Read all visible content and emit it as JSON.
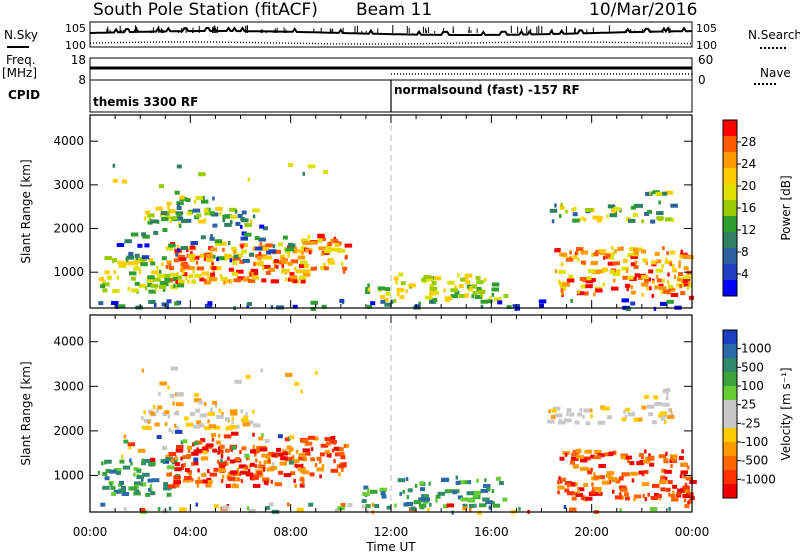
{
  "header": {
    "station": "South Pole Station (fitACF)",
    "beam": "Beam 11",
    "date": "10/Mar/2016"
  },
  "side_labels": {
    "nsky": "N.Sky",
    "nsearch": "N.Search",
    "freq": "Freq.",
    "freq_unit": "[MHz]",
    "nave": "Nave",
    "cpid": "CPID"
  },
  "noise_axis": {
    "left_ticks": [
      "10^5",
      "10^0"
    ],
    "right_ticks": [
      "10^5",
      "10^0"
    ]
  },
  "freq_axis": {
    "left_ticks": [
      "18",
      "8"
    ],
    "right_ticks": [
      "60",
      "0"
    ]
  },
  "cpid": {
    "segments": [
      {
        "label": "themis 3300 RF"
      },
      {
        "label": "normalsound (fast) -157 RF"
      }
    ]
  },
  "colors": {
    "grid_dash": "#bbbbbb",
    "axis": "#000000"
  },
  "chart_data": [
    {
      "type": "heatmap",
      "name": "power",
      "ylabel": "Slant Range [km]",
      "yticks": [
        1000,
        2000,
        3000,
        4000
      ],
      "ylim": [
        180,
        4600
      ],
      "xlim_hours": [
        0,
        24
      ],
      "colorbar": {
        "label": "Power [dB]",
        "ticks": [
          "28",
          "24",
          "20",
          "16",
          "12",
          "8",
          "4"
        ],
        "colors": [
          "#ff0000",
          "#ff5a00",
          "#ff9900",
          "#ffcc00",
          "#e0e000",
          "#99cc00",
          "#2e9e2e",
          "#2f8060",
          "#2b5fa0",
          "#1f3fc0",
          "#0000ff"
        ]
      }
    },
    {
      "type": "heatmap",
      "name": "velocity",
      "ylabel": "Slant Range [km]",
      "yticks": [
        1000,
        2000,
        3000,
        4000
      ],
      "ylim": [
        180,
        4600
      ],
      "xlim_hours": [
        0,
        24
      ],
      "colorbar": {
        "label": "Velocity [m s⁻¹]",
        "ticks": [
          "1000",
          "500",
          "100",
          "25",
          "-25",
          "-100",
          "-500",
          "-1000"
        ],
        "colors": [
          "#1b3fbf",
          "#2b6aa8",
          "#2e8a6a",
          "#3aa33a",
          "#66cc33",
          "#c8c8c8",
          "#c8c8c8",
          "#ffcc00",
          "#ff9900",
          "#ff6600",
          "#ff3300",
          "#ee0000"
        ]
      }
    }
  ],
  "x_axis": {
    "ticks": [
      "00:00",
      "04:00",
      "08:00",
      "12:00",
      "16:00",
      "20:00",
      "00:00"
    ],
    "label": "Time UT"
  }
}
